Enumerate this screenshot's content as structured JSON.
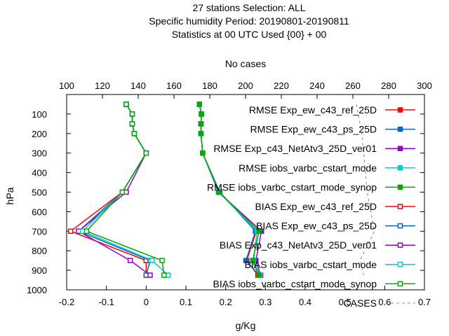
{
  "chart_data": {
    "type": "line",
    "title_lines": [
      "27 stations Selection: ALL",
      "Specific humidity  Period: 20190801-20190811",
      "Statistics at 00 UTC  Used {00} + 00"
    ],
    "xlabel": "g/Kg",
    "ylabel": "hPa",
    "x2label": "No cases",
    "xlim": [
      -0.2,
      0.7
    ],
    "x2lim": [
      100,
      300
    ],
    "ylim": [
      1000,
      0
    ],
    "xticks": [
      "-0.2",
      "-0.1",
      "0",
      "0.1",
      "0.2",
      "0.3",
      "0.4",
      "0.5",
      "0.6",
      "0.7"
    ],
    "x2ticks": [
      "100",
      "120",
      "140",
      "160",
      "180",
      "200",
      "220",
      "240",
      "260",
      "280",
      "300"
    ],
    "yticks": [
      "100",
      "200",
      "300",
      "400",
      "500",
      "600",
      "700",
      "800",
      "900",
      "1000"
    ],
    "legend_position": "top-right",
    "series": [
      {
        "name": "RMSE Exp_ew_c43_ref_25D",
        "color": "#ff0000",
        "marker": "filled",
        "levels": [
          50,
          100,
          150,
          200,
          300,
          500,
          700,
          850,
          925
        ],
        "values": [
          0.134,
          0.139,
          0.138,
          0.138,
          0.142,
          0.185,
          0.277,
          0.253,
          0.281
        ]
      },
      {
        "name": "RMSE Exp_ew_c43_ps_25D",
        "color": "#0066cc",
        "marker": "filled",
        "levels": [
          50,
          100,
          150,
          200,
          300,
          500,
          700,
          850,
          925
        ],
        "values": [
          0.134,
          0.139,
          0.138,
          0.138,
          0.142,
          0.185,
          0.275,
          0.251,
          0.284
        ]
      },
      {
        "name": "RMSE Exp_c43_NetAtv3_25D_ver01",
        "color": "#9900cc",
        "marker": "filled",
        "levels": [
          50,
          100,
          150,
          200,
          300,
          500,
          700,
          850,
          925
        ],
        "values": [
          0.134,
          0.139,
          0.138,
          0.138,
          0.142,
          0.182,
          0.29,
          0.276,
          0.288
        ]
      },
      {
        "name": "RMSE iobs_varbc_cstart_mode",
        "color": "#00cccc",
        "marker": "filled",
        "levels": [
          50,
          100,
          150,
          200,
          300,
          500,
          700,
          850,
          925
        ],
        "values": [
          0.134,
          0.139,
          0.138,
          0.138,
          0.142,
          0.183,
          0.279,
          0.27,
          0.286
        ]
      },
      {
        "name": "RMSE iobs_varbc_cstart_mode_synop",
        "color": "#00aa00",
        "marker": "filled",
        "levels": [
          50,
          100,
          150,
          200,
          300,
          500,
          700,
          850,
          925
        ],
        "values": [
          0.134,
          0.139,
          0.138,
          0.138,
          0.142,
          0.183,
          0.284,
          0.268,
          0.283
        ]
      },
      {
        "name": "BIAS Exp_ew_c43_ref_25D",
        "color": "#ff0000",
        "marker": "open",
        "levels": [
          50,
          100,
          150,
          200,
          300,
          500,
          700,
          850,
          925
        ],
        "values": [
          -0.05,
          -0.035,
          -0.035,
          -0.03,
          0.0,
          -0.06,
          -0.19,
          0.0,
          0.0
        ]
      },
      {
        "name": "BIAS Exp_ew_c43_ps_25D",
        "color": "#0066cc",
        "marker": "open",
        "levels": [
          50,
          100,
          150,
          200,
          300,
          500,
          700,
          850,
          925
        ],
        "values": [
          -0.05,
          -0.035,
          -0.035,
          -0.03,
          0.0,
          -0.06,
          -0.17,
          0.01,
          0.0
        ]
      },
      {
        "name": "BIAS Exp_c43_NetAtv3_25D_ver01",
        "color": "#9900cc",
        "marker": "open",
        "levels": [
          50,
          100,
          150,
          200,
          300,
          500,
          700,
          850,
          925
        ],
        "values": [
          -0.05,
          -0.035,
          -0.035,
          -0.03,
          0.0,
          -0.05,
          -0.17,
          -0.04,
          0.01
        ]
      },
      {
        "name": "BIAS iobs_varbc_cstart_mode",
        "color": "#00cccc",
        "marker": "open",
        "levels": [
          50,
          100,
          150,
          200,
          300,
          500,
          700,
          850,
          925
        ],
        "values": [
          -0.05,
          -0.035,
          -0.035,
          -0.03,
          0.0,
          -0.06,
          -0.16,
          0.015,
          0.055
        ]
      },
      {
        "name": "BIAS iobs_varbc_cstart_mode_synop",
        "color": "#00aa00",
        "marker": "open",
        "levels": [
          50,
          100,
          150,
          200,
          300,
          500,
          700,
          850,
          925
        ],
        "values": [
          -0.05,
          -0.035,
          -0.035,
          -0.03,
          0.0,
          -0.06,
          -0.15,
          0.04,
          0.045
        ]
      }
    ],
    "cases": {
      "name": "CASES",
      "color": "#888888",
      "levels": [
        50,
        100,
        150,
        200,
        300,
        500,
        700,
        850,
        925
      ],
      "values": [
        262,
        263,
        264,
        265,
        266,
        268,
        272,
        264,
        266
      ]
    }
  }
}
